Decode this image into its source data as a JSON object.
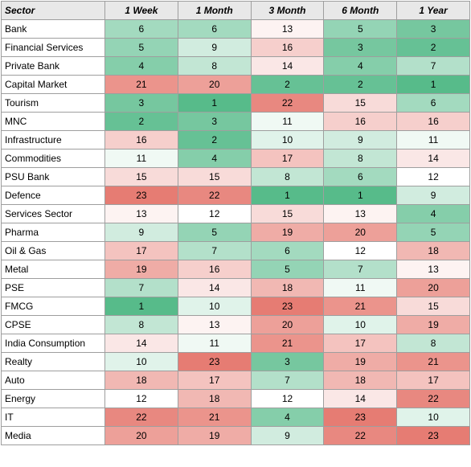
{
  "table": {
    "headers": [
      "Sector",
      "1 Week",
      "1 Month",
      "3 Month",
      "6 Month",
      "1 Year"
    ],
    "rows": [
      {
        "sector": "Bank",
        "values": [
          6,
          6,
          13,
          5,
          3
        ]
      },
      {
        "sector": "Financial Services",
        "values": [
          5,
          9,
          16,
          3,
          2
        ]
      },
      {
        "sector": "Private Bank",
        "values": [
          4,
          8,
          14,
          4,
          7
        ]
      },
      {
        "sector": "Capital Market",
        "values": [
          21,
          20,
          2,
          2,
          1
        ]
      },
      {
        "sector": "Tourism",
        "values": [
          3,
          1,
          22,
          15,
          6
        ]
      },
      {
        "sector": "MNC",
        "values": [
          2,
          3,
          11,
          16,
          16
        ]
      },
      {
        "sector": "Infrastructure",
        "values": [
          16,
          2,
          10,
          9,
          11
        ]
      },
      {
        "sector": "Commodities",
        "values": [
          11,
          4,
          17,
          8,
          14
        ]
      },
      {
        "sector": "PSU Bank",
        "values": [
          15,
          15,
          8,
          6,
          12
        ]
      },
      {
        "sector": "Defence",
        "values": [
          23,
          22,
          1,
          1,
          9
        ]
      },
      {
        "sector": "Services Sector",
        "values": [
          13,
          12,
          15,
          13,
          4
        ]
      },
      {
        "sector": "Pharma",
        "values": [
          9,
          5,
          19,
          20,
          5
        ]
      },
      {
        "sector": "Oil & Gas",
        "values": [
          17,
          7,
          6,
          12,
          18
        ]
      },
      {
        "sector": "Metal",
        "values": [
          19,
          16,
          5,
          7,
          13
        ]
      },
      {
        "sector": "PSE",
        "values": [
          7,
          14,
          18,
          11,
          20
        ]
      },
      {
        "sector": "FMCG",
        "values": [
          1,
          10,
          23,
          21,
          15
        ]
      },
      {
        "sector": "CPSE",
        "values": [
          8,
          13,
          20,
          10,
          19
        ]
      },
      {
        "sector": "India Consumption",
        "values": [
          14,
          11,
          21,
          17,
          8
        ]
      },
      {
        "sector": "Realty",
        "values": [
          10,
          23,
          3,
          19,
          21
        ]
      },
      {
        "sector": "Auto",
        "values": [
          18,
          17,
          7,
          18,
          17
        ]
      },
      {
        "sector": "Energy",
        "values": [
          12,
          18,
          12,
          14,
          22
        ]
      },
      {
        "sector": "IT",
        "values": [
          22,
          21,
          4,
          23,
          10
        ]
      },
      {
        "sector": "Media",
        "values": [
          20,
          19,
          9,
          22,
          23
        ]
      }
    ]
  },
  "colors": {
    "best": "#57bb8a",
    "mid": "#ffffff",
    "worst": "#e67c73",
    "header_bg": "#e8e8e8",
    "border": "#9e9e9e"
  },
  "scale": {
    "min": 1,
    "mid": 12,
    "max": 23
  }
}
